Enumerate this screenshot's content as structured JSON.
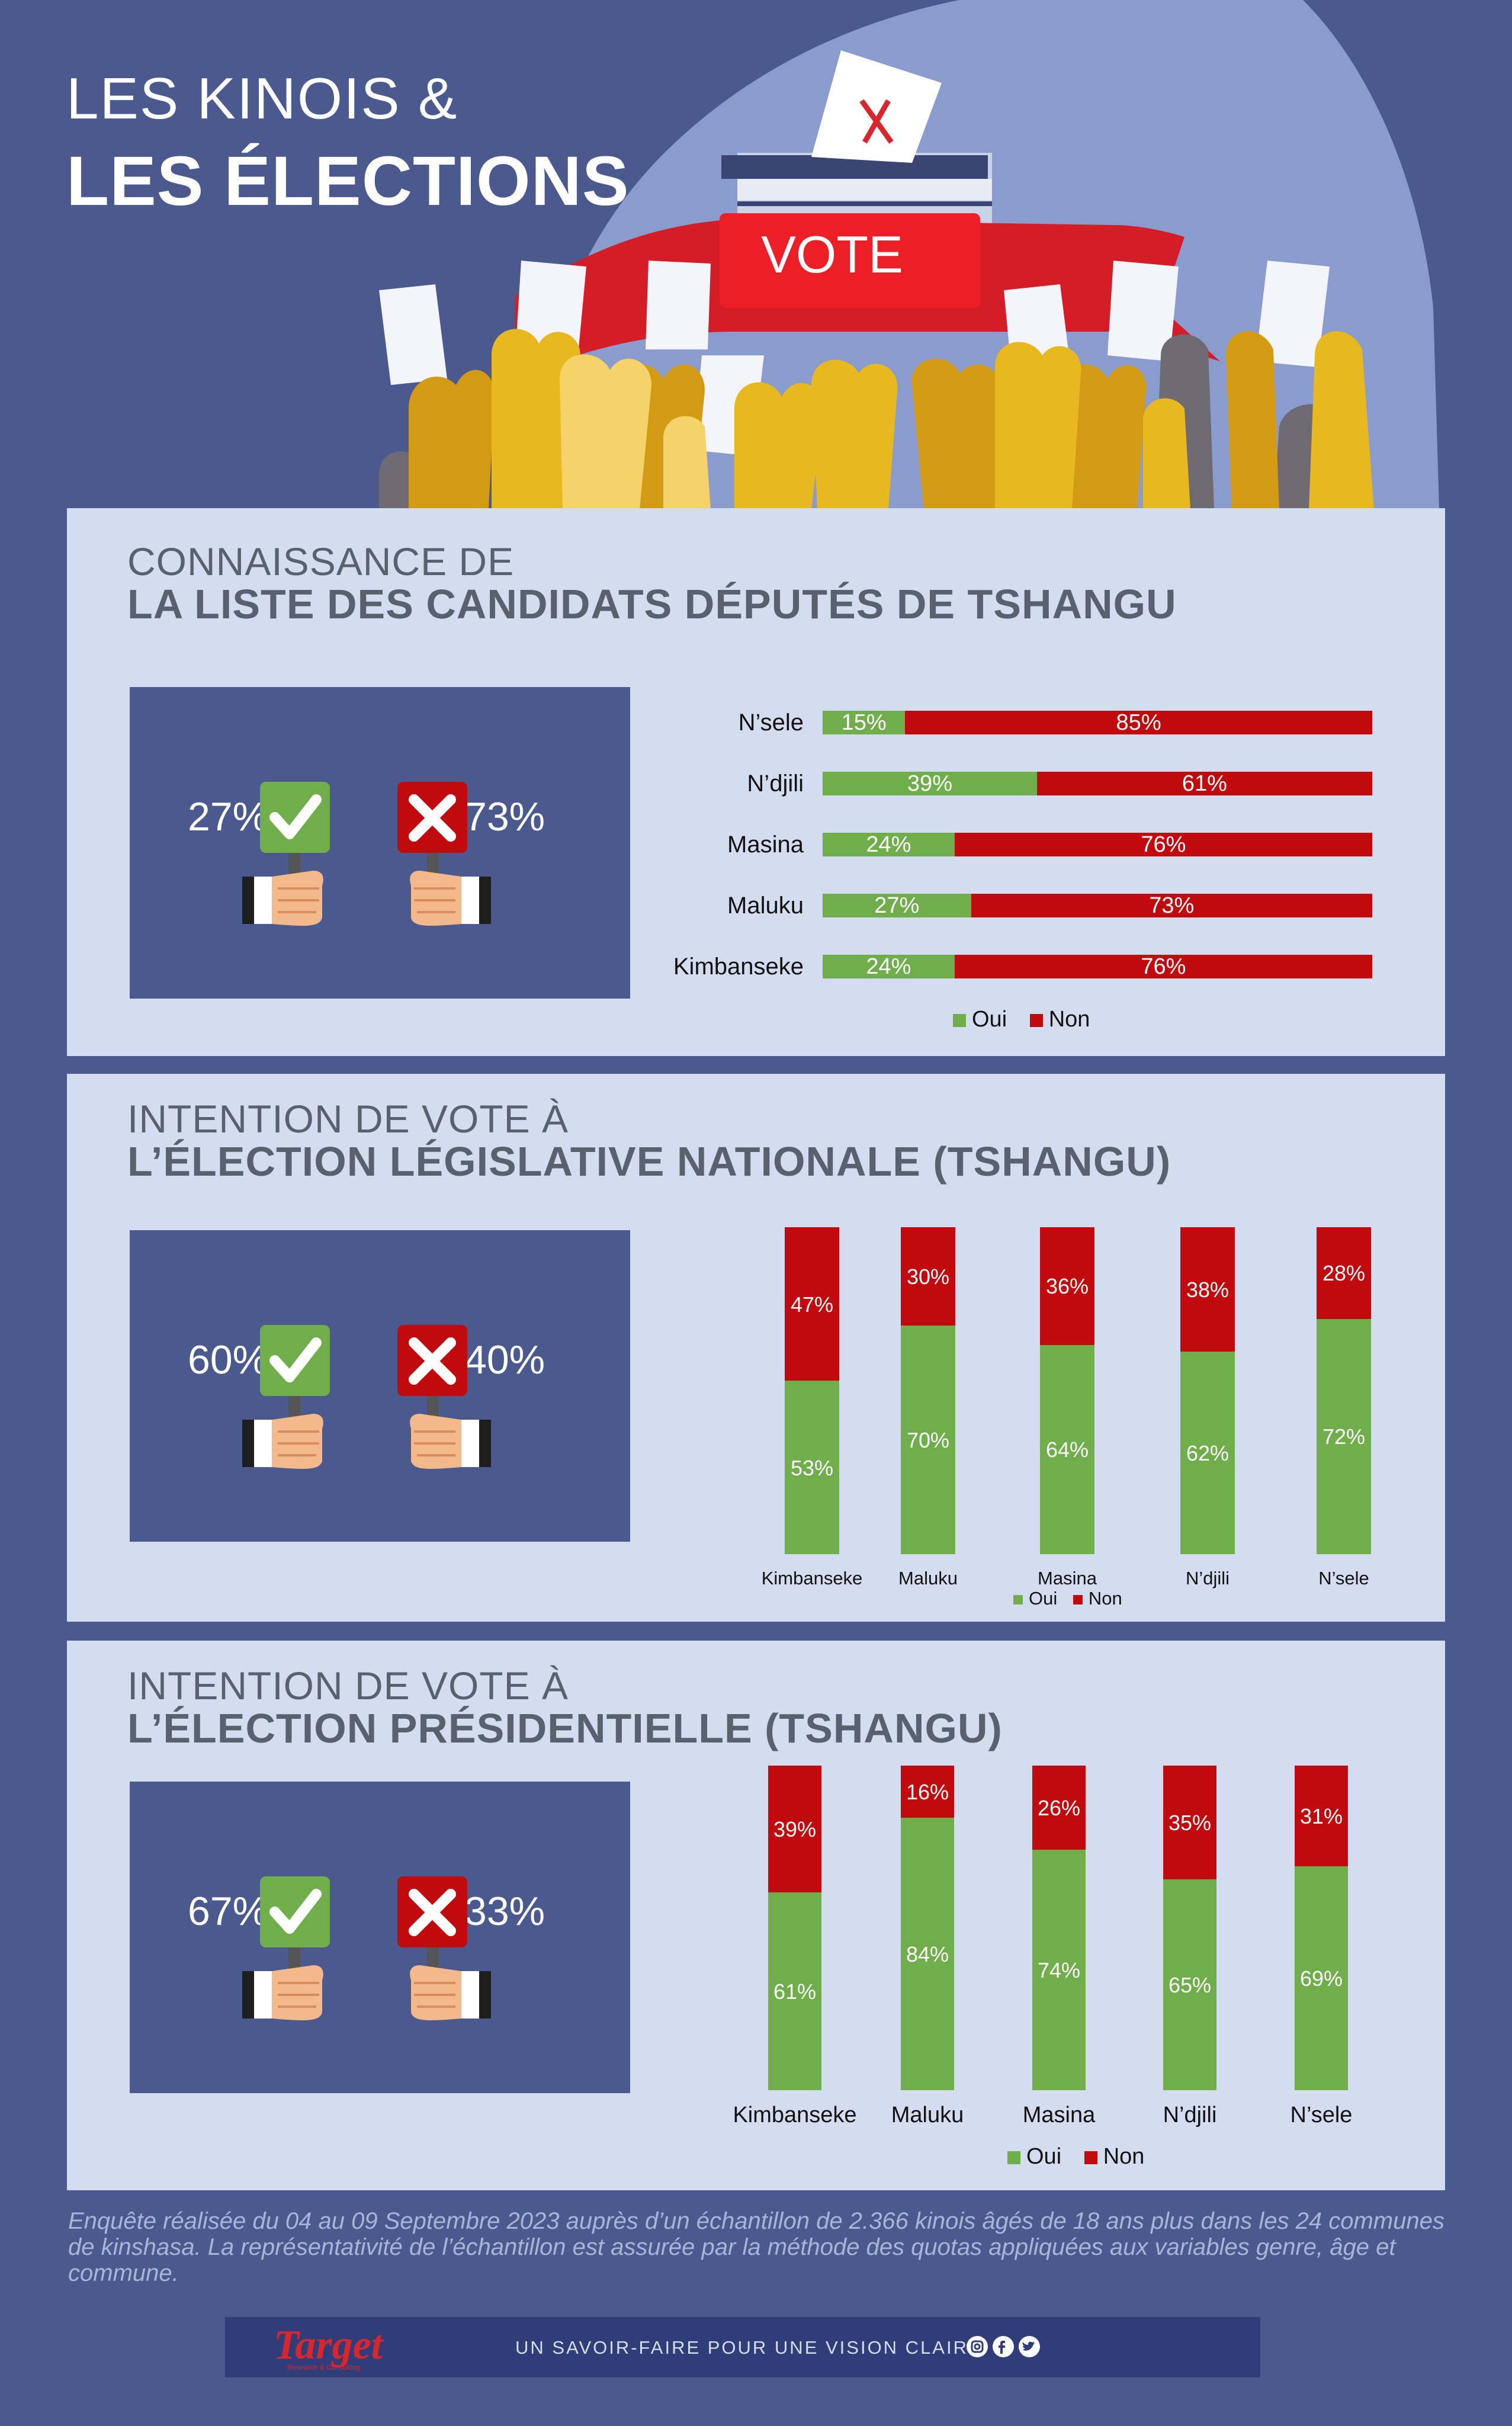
{
  "header": {
    "title_line1": "LES KINOIS &",
    "title_line2": "LES ÉLECTIONS",
    "vote_banner": "VOTE"
  },
  "icons": {
    "check": "check-sign-icon",
    "cross": "cross-sign-icon",
    "hand": "hand-holding-sign-icon"
  },
  "colors": {
    "oui": "#6fae4b",
    "non": "#c00a0d",
    "panel": "#d4ddef",
    "background": "#4b5a8e"
  },
  "legend": {
    "oui": "Oui",
    "non": "Non"
  },
  "section1": {
    "title_line1": "CONNAISSANCE DE",
    "title_line2": "LA LISTE DES CANDIDATS DÉPUTÉS DE TSHANGU",
    "yes_pct": "27%",
    "no_pct": "73%"
  },
  "section2": {
    "title_line1": "INTENTION DE VOTE À",
    "title_line2": "L’ÉLECTION LÉGISLATIVE NATIONALE (TSHANGU)",
    "yes_pct": "60%",
    "no_pct": "40%"
  },
  "section3": {
    "title_line1": "INTENTION DE VOTE À",
    "title_line2": "L’ÉLECTION PRÉSIDENTIELLE (TSHANGU)",
    "yes_pct": "67%",
    "no_pct": "33%"
  },
  "chart_data": [
    {
      "type": "bar",
      "orientation": "horizontal",
      "stacked": true,
      "categories": [
        "N’sele",
        "N’djili",
        "Masina",
        "Maluku",
        "Kimbanseke"
      ],
      "series": [
        {
          "name": "Oui",
          "values": [
            15,
            39,
            24,
            27,
            24
          ],
          "labels": [
            "15%",
            "39%",
            "24%",
            "27%",
            "24%"
          ]
        },
        {
          "name": "Non",
          "values": [
            85,
            61,
            76,
            73,
            76
          ],
          "labels": [
            "85%",
            "61%",
            "76%",
            "73%",
            "76%"
          ]
        }
      ],
      "legend": "bottom"
    },
    {
      "type": "bar",
      "orientation": "vertical",
      "stacked": true,
      "categories": [
        "Kimbanseke",
        "Maluku",
        "Masina",
        "N’djili",
        "N’sele"
      ],
      "series": [
        {
          "name": "Oui",
          "values": [
            53,
            70,
            64,
            62,
            72
          ],
          "labels": [
            "53%",
            "70%",
            "64%",
            "62%",
            "72%"
          ]
        },
        {
          "name": "Non",
          "values": [
            47,
            30,
            36,
            38,
            28
          ],
          "labels": [
            "47%",
            "30%",
            "36%",
            "38%",
            "28%"
          ]
        }
      ],
      "legend": "bottom"
    },
    {
      "type": "bar",
      "orientation": "vertical",
      "stacked": true,
      "categories": [
        "Kimbanseke",
        "Maluku",
        "Masina",
        "N’djili",
        "N’sele"
      ],
      "series": [
        {
          "name": "Oui",
          "values": [
            61,
            84,
            74,
            65,
            69
          ],
          "labels": [
            "61%",
            "84%",
            "74%",
            "65%",
            "69%"
          ]
        },
        {
          "name": "Non",
          "values": [
            39,
            16,
            26,
            35,
            31
          ],
          "labels": [
            "39%",
            "16%",
            "26%",
            "35%",
            "31%"
          ]
        }
      ],
      "legend": "bottom"
    }
  ],
  "footnote": "Enquête réalisée du 04 au 09 Septembre 2023 auprès d’un échantillon de 2.366 kinois âgés de 18 ans plus dans les 24 communes de kinshasa. La représentativité de l’échantillon est assurée par la méthode des quotas appliquées aux variables genre, âge et commune.",
  "footer": {
    "logo": "Target",
    "logo_sub": "Research & Consulting",
    "tagline": "UN SAVOIR-FAIRE POUR UNE VISION CLAIRE",
    "social_icons": [
      "instagram-icon",
      "facebook-icon",
      "twitter-icon"
    ]
  }
}
